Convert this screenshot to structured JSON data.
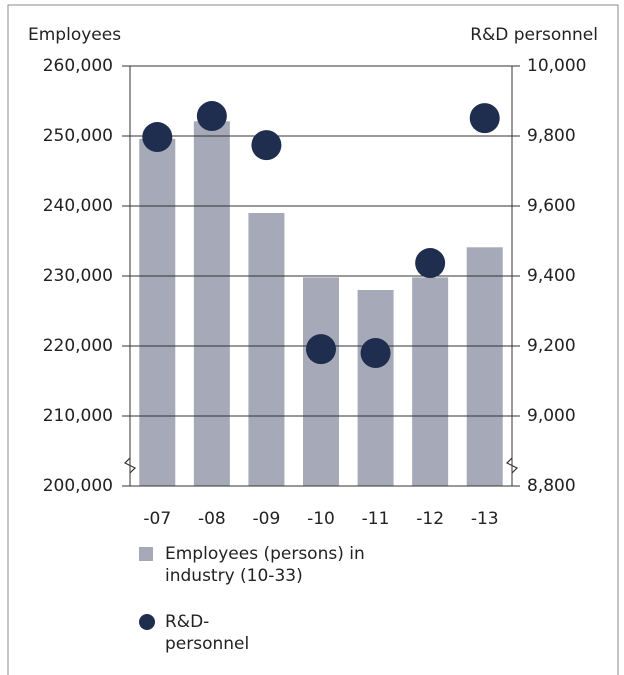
{
  "chart_data": {
    "type": "bar_scatter",
    "ylabel": "Employees",
    "y2label": "R&D personnel",
    "categories": [
      "-07",
      "-08",
      "-09",
      "-10",
      "-11",
      "-12",
      "-13"
    ],
    "series": [
      {
        "name": "Employees (persons) in industry (10-33)",
        "color": "#a6a9b7",
        "type": "bar",
        "values": [
          249600,
          252100,
          239000,
          229800,
          228000,
          229800,
          234100
        ]
      },
      {
        "name": "R&D-personnel",
        "color": "#1f2d4e",
        "type": "scatter",
        "axis": "y2",
        "values": [
          9797,
          9857,
          9774,
          9191,
          9180,
          9437,
          9851
        ]
      }
    ],
    "ylim": [
      200000,
      260000
    ],
    "yticks": [
      {
        "value": 200000,
        "label": "200,000"
      },
      {
        "value": 210000,
        "label": "210,000"
      },
      {
        "value": 220000,
        "label": "220,000"
      },
      {
        "value": 230000,
        "label": "230,000"
      },
      {
        "value": 240000,
        "label": "240,000"
      },
      {
        "value": 250000,
        "label": "250,000"
      },
      {
        "value": 260000,
        "label": "260,000"
      }
    ],
    "y2lim": [
      8800,
      10000
    ],
    "y2ticks": [
      {
        "value": 8800,
        "label": "8,800"
      },
      {
        "value": 9000,
        "label": "9,000"
      },
      {
        "value": 9200,
        "label": "9,200"
      },
      {
        "value": 9400,
        "label": "9,400"
      },
      {
        "value": 9600,
        "label": "9,600"
      },
      {
        "value": 9800,
        "label": "9,800"
      },
      {
        "value": 10000,
        "label": "10,000"
      }
    ],
    "grid": true
  }
}
